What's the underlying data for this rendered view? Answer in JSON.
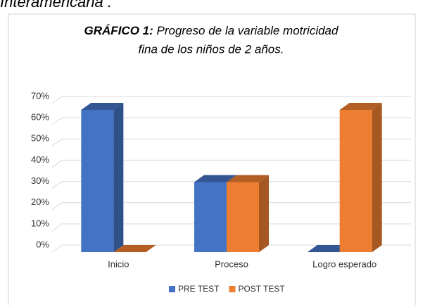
{
  "header_text": "Interamericana .",
  "chart_data": {
    "type": "bar3d",
    "title_label": "GRÁFICO 1:",
    "title_lines": [
      "Progreso de la variable motricidad",
      "fina de los niños de 2 años."
    ],
    "categories": [
      "Inicio",
      "Proceso",
      "Logro esperado"
    ],
    "series": [
      {
        "name": "PRE TEST",
        "color": "#4472c4",
        "values": [
          67,
          33,
          0
        ]
      },
      {
        "name": "POST TEST",
        "color": "#ed7d31",
        "values": [
          0,
          33,
          67
        ]
      }
    ],
    "ylim": [
      0,
      70
    ],
    "yticks": [
      {
        "value": 0,
        "label": "0%"
      },
      {
        "value": 10,
        "label": "10%"
      },
      {
        "value": 20,
        "label": "20%"
      },
      {
        "value": 30,
        "label": "30%"
      },
      {
        "value": 40,
        "label": "40%"
      },
      {
        "value": 50,
        "label": "50%"
      },
      {
        "value": 60,
        "label": "60%"
      },
      {
        "value": 70,
        "label": "70%"
      }
    ],
    "grid": true,
    "legend": "bottom"
  }
}
